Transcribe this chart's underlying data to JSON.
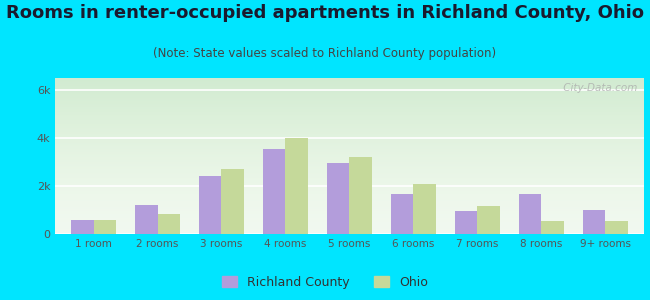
{
  "title": "Rooms in renter-occupied apartments in Richland County, Ohio",
  "subtitle": "(Note: State values scaled to Richland County population)",
  "categories": [
    "1 room",
    "2 rooms",
    "3 rooms",
    "4 rooms",
    "5 rooms",
    "6 rooms",
    "7 rooms",
    "8 rooms",
    "9+ rooms"
  ],
  "richland_values": [
    600,
    1200,
    2400,
    3550,
    2950,
    1650,
    950,
    1650,
    1000
  ],
  "ohio_values": [
    600,
    850,
    2700,
    4000,
    3200,
    2100,
    1150,
    550,
    550
  ],
  "richland_color": "#b39ddb",
  "ohio_color": "#c5d99a",
  "background_outer": "#00e5ff",
  "ylim": [
    0,
    6500
  ],
  "yticks": [
    0,
    2000,
    4000,
    6000
  ],
  "ytick_labels": [
    "0",
    "2k",
    "4k",
    "6k"
  ],
  "title_fontsize": 13,
  "subtitle_fontsize": 8.5,
  "watermark": " City-Data.com"
}
